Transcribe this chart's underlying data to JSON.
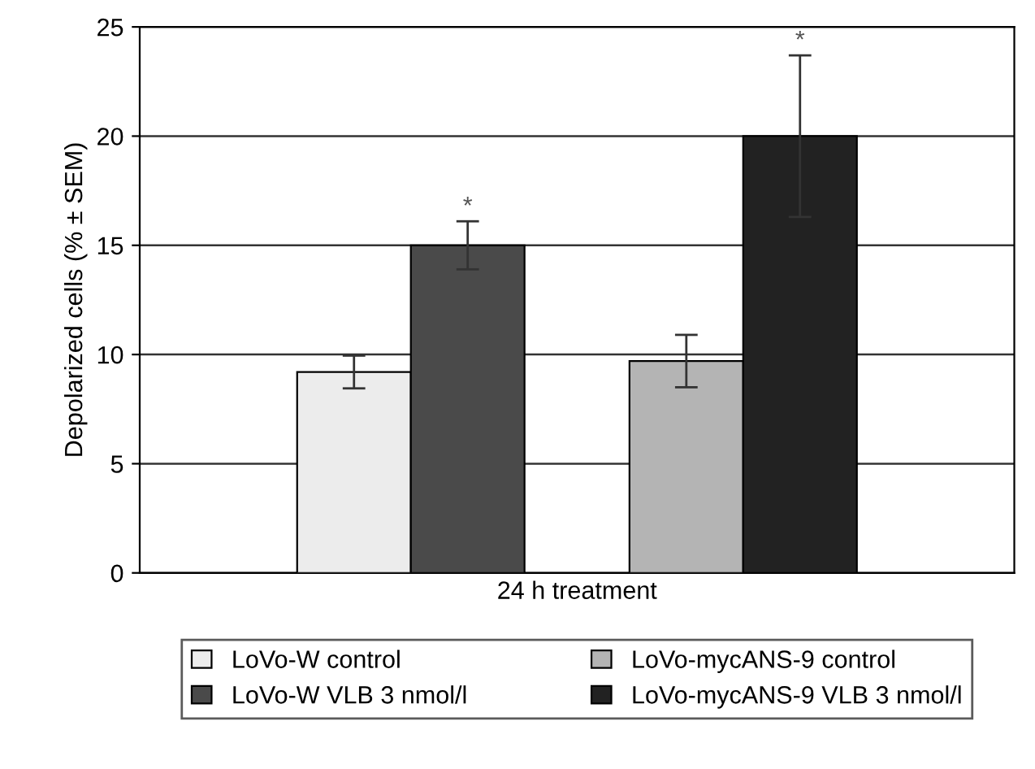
{
  "chart_data": {
    "type": "bar",
    "ylabel": "Depolarized cells (% ± SEM)",
    "categories": [
      "24 h treatment"
    ],
    "series": [
      {
        "name": "LoVo-W control",
        "color": "#ececec",
        "values": [
          9.2
        ],
        "errors": [
          0.75
        ]
      },
      {
        "name": "LoVo-W VLB 3 nmol/l",
        "color": "#4a4a4a",
        "values": [
          15
        ],
        "errors": [
          1.1
        ]
      },
      {
        "name": "LoVo-mycANS-9 control",
        "color": "#b4b4b4",
        "values": [
          9.7
        ],
        "errors": [
          1.2
        ]
      },
      {
        "name": "LoVo-mycANS-9 VLB 3 nmol/l",
        "color": "#222222",
        "values": [
          20
        ],
        "errors": [
          3.7
        ]
      }
    ],
    "annotations": [
      "*",
      "*"
    ],
    "ylim": [
      0,
      25
    ],
    "yticks": [
      0,
      5,
      10,
      15,
      20,
      25
    ],
    "grid": "y",
    "legend": "bottom"
  }
}
